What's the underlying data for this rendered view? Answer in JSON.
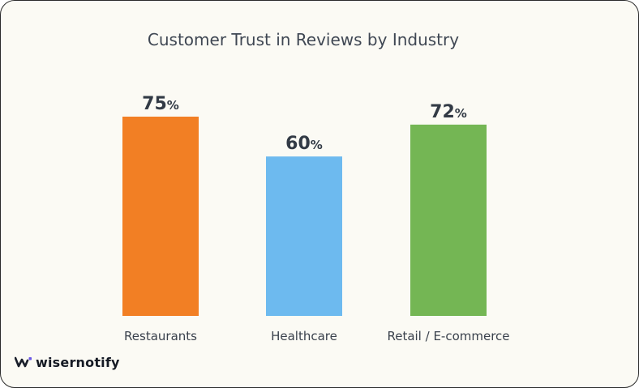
{
  "chart_data": {
    "type": "bar",
    "title": "Customer Trust in Reviews by Industry",
    "categories": [
      "Restaurants",
      "Healthcare",
      "Retail / E-commerce"
    ],
    "values": [
      75,
      60,
      72
    ],
    "value_labels": [
      "75",
      "60",
      "72"
    ],
    "value_suffix": "%",
    "colors": [
      "#f27f24",
      "#6dbaef",
      "#74b654"
    ],
    "xlabel": "",
    "ylabel": "",
    "ylim": [
      0,
      100
    ],
    "grid": false,
    "legend": "none"
  },
  "brand": {
    "name": "wisernotify",
    "logo_icon": "wisernotify-logo-icon",
    "icon_colors": [
      "#1a1f2b",
      "#6a57e6"
    ]
  }
}
